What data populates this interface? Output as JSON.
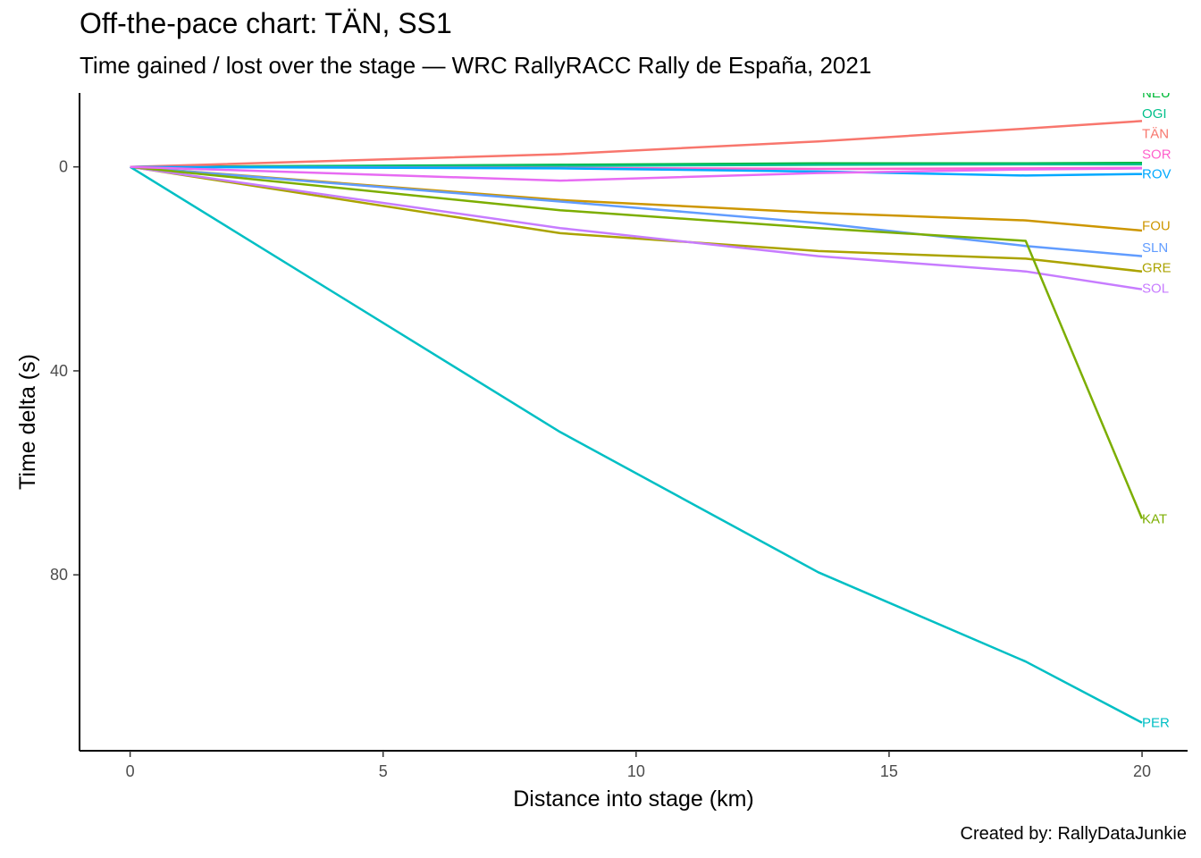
{
  "chart_data": {
    "type": "line",
    "title": "Off-the-pace chart: TÄN, SS1",
    "subtitle": "Time gained / lost over the stage — WRC RallyRACC Rally de España, 2021",
    "caption": "Created by: RallyDataJunkie",
    "xlabel": "Distance into stage (km)",
    "ylabel": "Time delta (s)",
    "xlim": [
      -1,
      20.9
    ],
    "ylim": [
      -14.5,
      114.5
    ],
    "y_reversed": true,
    "x_ticks": [
      0,
      5,
      10,
      15,
      20
    ],
    "y_ticks": [
      0,
      40,
      80
    ],
    "grid": false,
    "legend": "none",
    "series": [
      {
        "name": "NEU",
        "color": "#00BA38",
        "x": [
          0,
          8.5,
          13.6,
          17.7,
          20.0
        ],
        "y": [
          0,
          -0.4,
          -0.7,
          -0.7,
          -0.8
        ]
      },
      {
        "name": "OGI",
        "color": "#00C08B",
        "x": [
          0,
          8.5,
          13.6,
          17.7,
          20.0
        ],
        "y": [
          0,
          -0.2,
          -0.4,
          -0.5,
          -0.5
        ]
      },
      {
        "name": "TÄN",
        "color": "#F8766D",
        "x": [
          0,
          8.5,
          13.6,
          17.7,
          20.0
        ],
        "y": [
          0,
          -2.5,
          -5.0,
          -7.5,
          -9.0
        ]
      },
      {
        "name": "SOR",
        "color": "#FF61CC",
        "x": [
          0,
          8.5,
          13.6,
          17.7,
          20.0
        ],
        "y": [
          0,
          0.2,
          0.4,
          0.3,
          0.2
        ]
      },
      {
        "name": "ROV",
        "color": "#00A9FF",
        "x": [
          0,
          8.5,
          13.6,
          17.7,
          20.0
        ],
        "y": [
          0,
          0.3,
          0.9,
          1.7,
          1.4
        ]
      },
      {
        "name": "FOU",
        "color": "#CD9600",
        "x": [
          0,
          8.5,
          13.6,
          17.7,
          20.0
        ],
        "y": [
          0,
          6.5,
          9.0,
          10.5,
          12.5
        ]
      },
      {
        "name": "SLN",
        "color": "#619CFF",
        "x": [
          0,
          8.5,
          13.6,
          17.7,
          20.0
        ],
        "y": [
          0,
          6.8,
          11.0,
          15.5,
          17.5
        ]
      },
      {
        "name": "GRE",
        "color": "#ABA300",
        "x": [
          0,
          8.5,
          13.6,
          17.7,
          20.0
        ],
        "y": [
          0,
          13.0,
          16.5,
          18.0,
          20.5
        ]
      },
      {
        "name": "SOL",
        "color": "#C77CFF",
        "x": [
          0,
          8.5,
          13.6,
          17.7,
          20.0
        ],
        "y": [
          0,
          12.0,
          17.5,
          20.5,
          24.0
        ]
      },
      {
        "name": "KAT",
        "color": "#7CAE00",
        "x": [
          0,
          8.5,
          13.6,
          17.7,
          20.0
        ],
        "y": [
          0,
          8.5,
          12.0,
          14.5,
          69.0
        ]
      },
      {
        "name": "PER",
        "color": "#00BFC4",
        "x": [
          0,
          8.5,
          13.6,
          17.7,
          20.0
        ],
        "y": [
          0,
          52.0,
          79.5,
          97.0,
          109.0
        ]
      },
      {
        "name": "",
        "color": "#E76BF3",
        "x": [
          0,
          8.5,
          13.6,
          17.7,
          20.0
        ],
        "y": [
          0,
          2.7,
          1.2,
          0.5,
          0.3
        ]
      }
    ],
    "end_labels": [
      {
        "text": "NEU",
        "color": "#00BA38",
        "y": -14.5
      },
      {
        "text": "OGI",
        "color": "#00C08B",
        "y": -10.5
      },
      {
        "text": "TÄN",
        "color": "#F8766D",
        "y": -6.5
      },
      {
        "text": "SOR",
        "color": "#FF61CC",
        "y": -2.5
      },
      {
        "text": "ROV",
        "color": "#00A9FF",
        "y": 1.4
      },
      {
        "text": "FOU",
        "color": "#CD9600",
        "y": 11.5
      },
      {
        "text": "SLN",
        "color": "#619CFF",
        "y": 15.8
      },
      {
        "text": "GRE",
        "color": "#ABA300",
        "y": 19.8
      },
      {
        "text": "SOL",
        "color": "#C77CFF",
        "y": 23.8
      },
      {
        "text": "KAT",
        "color": "#7CAE00",
        "y": 69.0
      },
      {
        "text": "PER",
        "color": "#00BFC4",
        "y": 109.0
      }
    ]
  }
}
